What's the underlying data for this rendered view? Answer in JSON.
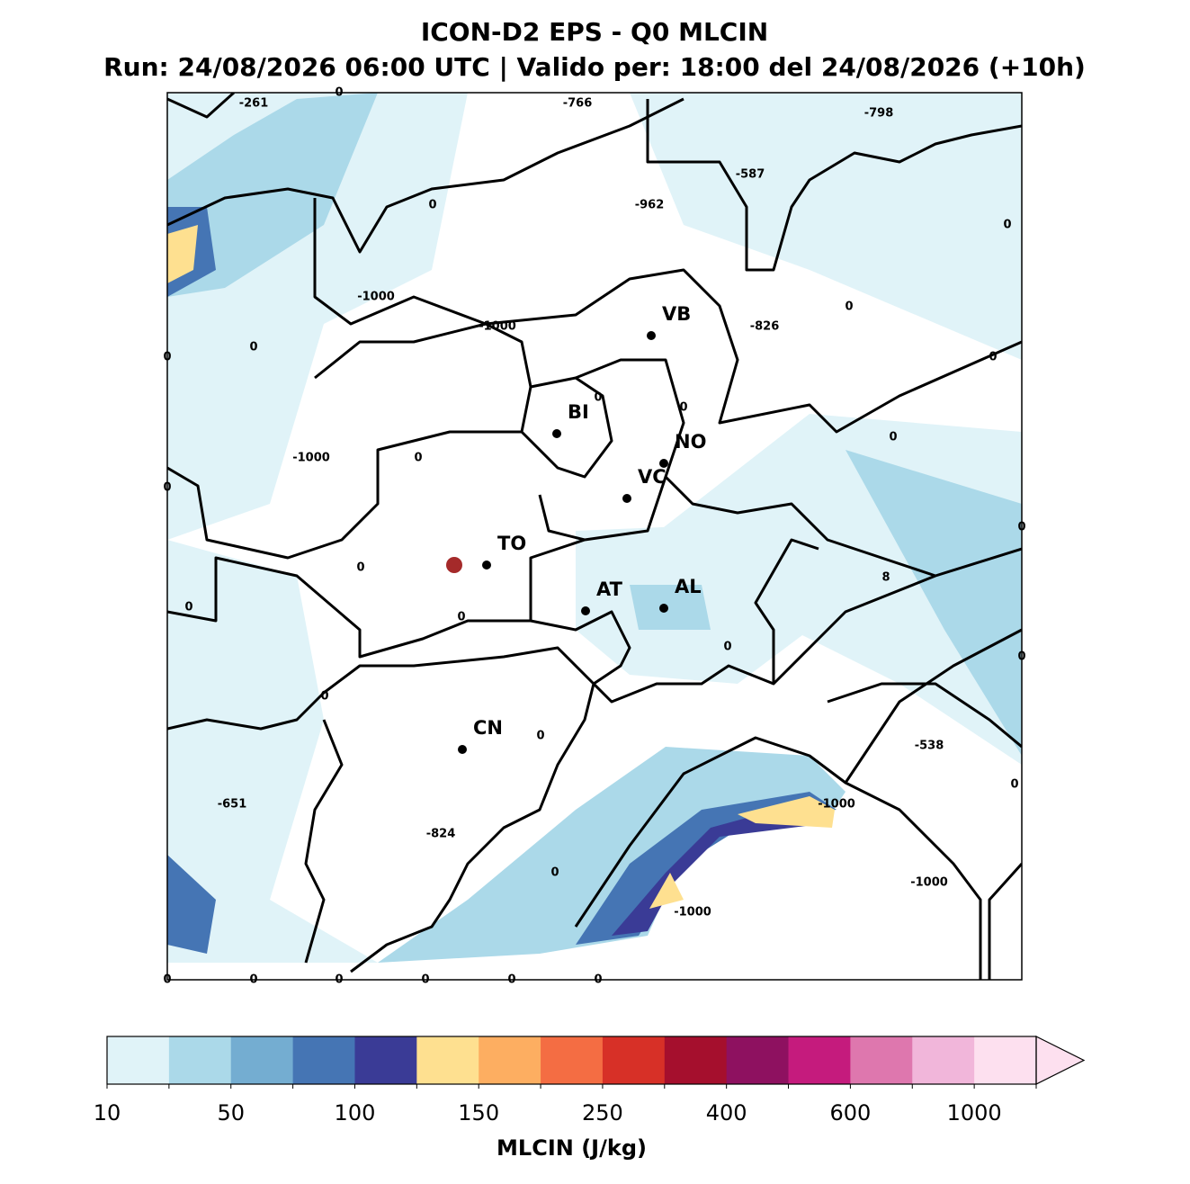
{
  "title": "ICON-D2 EPS - Q0 MLCIN",
  "subtitle": "Run: 24/08/2026 06:00 UTC | Valido per: 18:00 del 24/08/2026 (+10h)",
  "cities": [
    "VB",
    "BI",
    "NO",
    "VC",
    "TO",
    "AT",
    "AL",
    "CN"
  ],
  "contour_labels": [
    "-261",
    "0",
    "-766",
    "-798",
    "-587",
    "0",
    "-962",
    "0",
    "-1000",
    "-1000",
    "-826",
    "0",
    "0",
    "0",
    "0",
    "0",
    "0",
    "0",
    "-1000",
    "0",
    "0",
    "0",
    "0",
    "8",
    "0",
    "0",
    "0",
    "0",
    "0",
    "0",
    "-538",
    "0",
    "-651",
    "-1000",
    "-824",
    "0",
    "-1000",
    "-1000",
    "0",
    "0",
    "0",
    "0",
    "0",
    "0"
  ],
  "colorbar": {
    "colors": [
      "#e0f3f8",
      "#abd9e9",
      "#74add1",
      "#4575b4",
      "#3a3b96",
      "#fee090",
      "#fdae61",
      "#f46d43",
      "#d73027",
      "#a50f2d",
      "#8e1160",
      "#c51b7d",
      "#de77ae",
      "#f1b6da",
      "#fde0ef"
    ],
    "ticks": [
      "10",
      "50",
      "100",
      "150",
      "250",
      "400",
      "600",
      "1000"
    ],
    "label": "MLCIN (J/kg)"
  }
}
